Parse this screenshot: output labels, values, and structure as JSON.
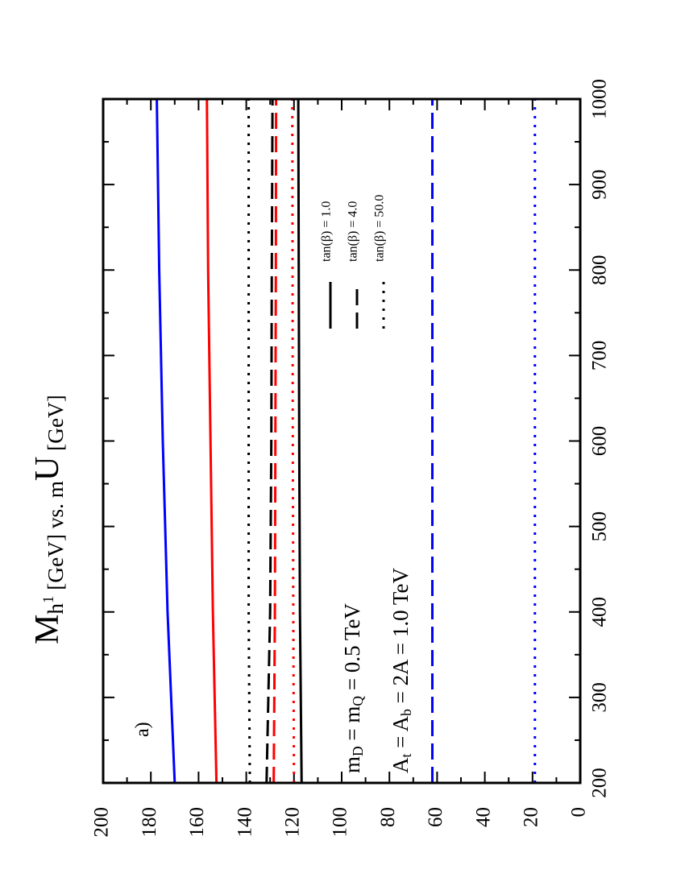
{
  "chart_data": {
    "type": "line",
    "title_parts": [
      "M",
      "h",
      "1",
      " [GeV] vs. m",
      "U",
      " [GeV]"
    ],
    "annotations": [
      {
        "parts": [
          "a)"
        ]
      },
      {
        "parts": [
          "m",
          "D",
          " = m",
          "Q",
          " = 0.5 TeV"
        ]
      },
      {
        "parts": [
          "A",
          "t",
          " = A",
          "b",
          " = 2A = 1.0 TeV"
        ]
      }
    ],
    "x": [
      200,
      400,
      600,
      800,
      1000
    ],
    "series": [
      {
        "color": "#0000ff",
        "style": "solid",
        "values": [
          170,
          173,
          175,
          176.5,
          177.5
        ]
      },
      {
        "color": "#ff0000",
        "style": "solid",
        "values": [
          152.5,
          154,
          155,
          156,
          156.5
        ]
      },
      {
        "color": "#000000",
        "style": "dotted",
        "values": [
          138.5,
          139,
          139,
          139,
          139
        ]
      },
      {
        "color": "#000000",
        "style": "dashed",
        "values": [
          131.5,
          130,
          129.5,
          129.3,
          129
        ]
      },
      {
        "color": "#ff0000",
        "style": "dashed",
        "values": [
          128.5,
          128,
          127.8,
          127.6,
          127.5
        ]
      },
      {
        "color": "#ff0000",
        "style": "dotted",
        "values": [
          120,
          120.3,
          120.5,
          120.6,
          120.7
        ]
      },
      {
        "color": "#000000",
        "style": "solid",
        "values": [
          116.8,
          117.5,
          117.8,
          118,
          118.2
        ]
      },
      {
        "color": "#0000ff",
        "style": "dashed",
        "values": [
          62,
          62,
          62,
          62,
          62
        ]
      },
      {
        "color": "#0000ff",
        "style": "dotted",
        "values": [
          19,
          19,
          19,
          19,
          19
        ]
      }
    ],
    "legend": [
      {
        "label": "tan(β) = 1.0",
        "style": "solid"
      },
      {
        "label": "tan(β) = 4.0",
        "style": "dashed"
      },
      {
        "label": "tan(β) = 50.0",
        "style": "dotted"
      }
    ],
    "xlim": [
      200,
      1000
    ],
    "xticks": [
      200,
      300,
      400,
      500,
      600,
      700,
      800,
      900,
      1000
    ],
    "ylim": [
      0,
      200
    ],
    "yticks": [
      0,
      20,
      40,
      60,
      80,
      100,
      120,
      140,
      160,
      180,
      200
    ]
  }
}
